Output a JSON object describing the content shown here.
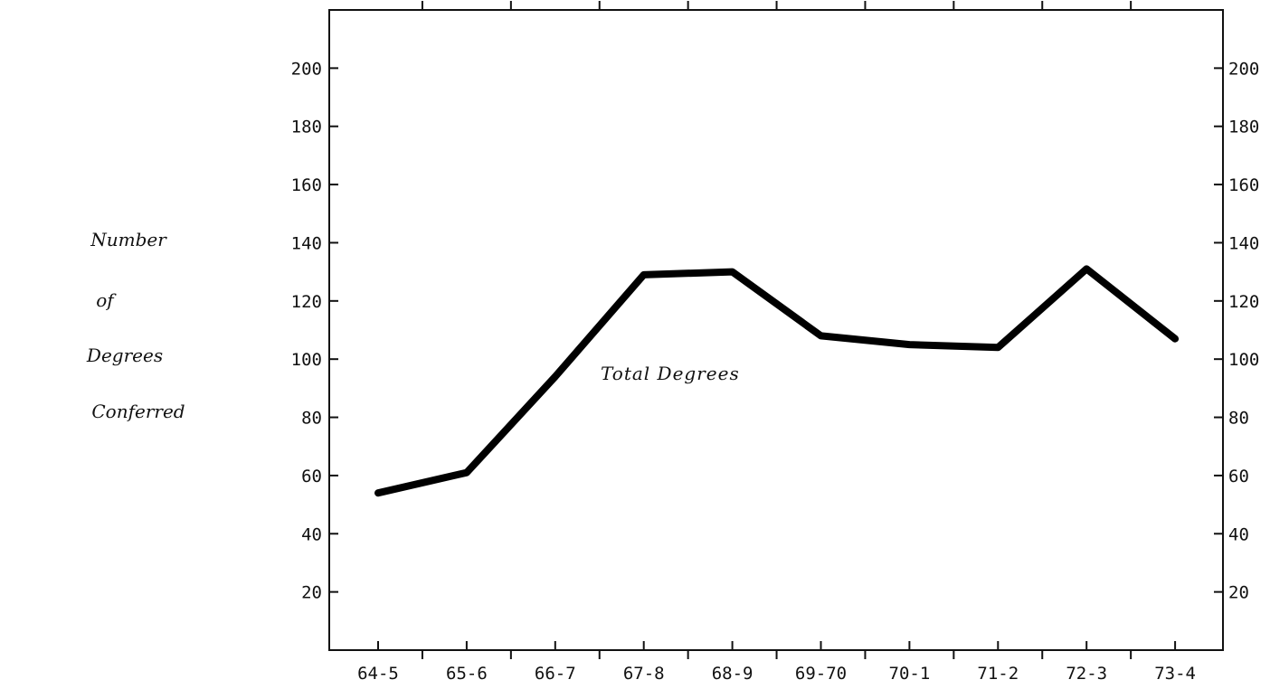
{
  "chart_data": {
    "type": "line",
    "categories": [
      "64-5",
      "65-6",
      "66-7",
      "67-8",
      "68-9",
      "69-70",
      "70-1",
      "71-2",
      "72-3",
      "73-4"
    ],
    "series": [
      {
        "values": [
          54,
          61,
          94,
          129,
          130,
          108,
          105,
          104,
          131,
          107
        ]
      }
    ],
    "ylabel_lines": [
      "Number",
      "of",
      "Degrees",
      "Conferred"
    ],
    "annotation": "Total Degrees",
    "y_ticks": [
      20,
      40,
      60,
      80,
      100,
      120,
      140,
      160,
      180,
      200
    ],
    "ylim": [
      0,
      220
    ],
    "grid": false,
    "right_axis_mirrors_left": true,
    "line_color": "#000000",
    "axis_color": "#111111"
  }
}
